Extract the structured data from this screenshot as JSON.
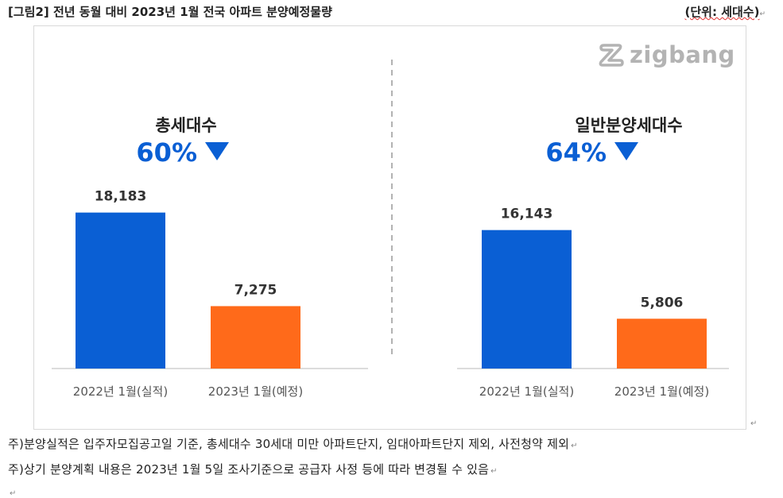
{
  "header": {
    "title": "[그림2] 전년 동월 대비 2023년 1월 전국 아파트 분양예정물량",
    "unit": "(단위: 세대수)"
  },
  "logo": {
    "text": "zigbang",
    "icon": "zigbang-logo-icon"
  },
  "chart_data": [
    {
      "type": "bar",
      "title": "총세대수",
      "change": "60%",
      "change_icon": "down-triangle-icon",
      "categories": [
        "2022년 1월(실적)",
        "2023년 1월(예정)"
      ],
      "values": [
        18183,
        7275
      ],
      "value_labels": [
        "18,183",
        "7,275"
      ],
      "colors": [
        "#0a5fd4",
        "#ff6a1a"
      ],
      "ylim": [
        0,
        20000
      ]
    },
    {
      "type": "bar",
      "title": "일반분양세대수",
      "change": "64%",
      "change_icon": "down-triangle-icon",
      "categories": [
        "2022년 1월(실적)",
        "2023년 1월(예정)"
      ],
      "values": [
        16143,
        5806
      ],
      "value_labels": [
        "16,143",
        "5,806"
      ],
      "colors": [
        "#0a5fd4",
        "#ff6a1a"
      ],
      "ylim": [
        0,
        20000
      ]
    }
  ],
  "notes": [
    "주)분양실적은 입주자모집공고일 기준, 총세대수 30세대 미만 아파트단지, 임대아파트단지 제외, 사전청약 제외",
    "주)상기 분양계획 내용은 2023년 1월 5일 조사기준으로 공급자 사정 등에 따라 변경될 수 있음"
  ],
  "colors": {
    "accent": "#0a5fd4",
    "secondary": "#ff6a1a",
    "grid_divider": "#999999",
    "axis": "#d0d0d0"
  }
}
